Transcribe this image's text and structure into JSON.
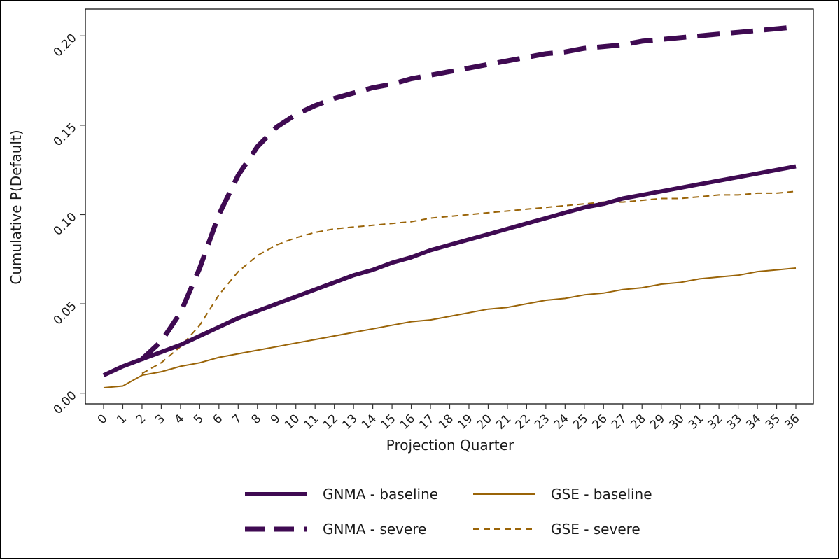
{
  "chart_data": {
    "type": "line",
    "title": "",
    "xlabel": "Projection Quarter",
    "ylabel": "Cumulative P(Default)",
    "xlim": [
      0,
      36
    ],
    "ylim": [
      0,
      0.2
    ],
    "x_ticks": [
      0,
      1,
      2,
      3,
      4,
      5,
      6,
      7,
      8,
      9,
      10,
      11,
      12,
      13,
      14,
      15,
      16,
      17,
      18,
      19,
      20,
      21,
      22,
      23,
      24,
      25,
      26,
      27,
      28,
      29,
      30,
      31,
      32,
      33,
      34,
      35,
      36
    ],
    "y_ticks": [
      0,
      0.05,
      0.1,
      0.15,
      0.2
    ],
    "y_tick_labels": [
      "0.00",
      "0.05",
      "0.10",
      "0.15",
      "0.20"
    ],
    "grid": false,
    "legend_position": "bottom",
    "x": [
      0,
      1,
      2,
      3,
      4,
      5,
      6,
      7,
      8,
      9,
      10,
      11,
      12,
      13,
      14,
      15,
      16,
      17,
      18,
      19,
      20,
      21,
      22,
      23,
      24,
      25,
      26,
      27,
      28,
      29,
      30,
      31,
      32,
      33,
      34,
      35,
      36
    ],
    "series": [
      {
        "name": "GNMA - baseline",
        "color": "#3f0a52",
        "style": "solid-thick",
        "values": [
          0.01,
          0.015,
          0.019,
          0.023,
          0.027,
          0.032,
          0.037,
          0.042,
          0.046,
          0.05,
          0.054,
          0.058,
          0.062,
          0.066,
          0.069,
          0.073,
          0.076,
          0.08,
          0.083,
          0.086,
          0.089,
          0.092,
          0.095,
          0.098,
          0.101,
          0.104,
          0.106,
          0.109,
          0.111,
          0.113,
          0.115,
          0.117,
          0.119,
          0.121,
          0.123,
          0.125,
          0.127
        ]
      },
      {
        "name": "GNMA - severe",
        "color": "#3f0a52",
        "style": "dashed-thick",
        "values": [
          null,
          null,
          0.019,
          0.029,
          0.045,
          0.07,
          0.1,
          0.122,
          0.138,
          0.149,
          0.156,
          0.161,
          0.165,
          0.168,
          0.171,
          0.173,
          0.176,
          0.178,
          0.18,
          0.182,
          0.184,
          0.186,
          0.188,
          0.19,
          0.191,
          0.193,
          0.194,
          0.195,
          0.197,
          0.198,
          0.199,
          0.2,
          0.201,
          0.202,
          0.203,
          0.204,
          0.205
        ]
      },
      {
        "name": "GSE - baseline",
        "color": "#9a6408",
        "style": "solid-thin",
        "values": [
          0.003,
          0.004,
          0.01,
          0.012,
          0.015,
          0.017,
          0.02,
          0.022,
          0.024,
          0.026,
          0.028,
          0.03,
          0.032,
          0.034,
          0.036,
          0.038,
          0.04,
          0.041,
          0.043,
          0.045,
          0.047,
          0.048,
          0.05,
          0.052,
          0.053,
          0.055,
          0.056,
          0.058,
          0.059,
          0.061,
          0.062,
          0.064,
          0.065,
          0.066,
          0.068,
          0.069,
          0.07
        ]
      },
      {
        "name": "GSE - severe",
        "color": "#9a6408",
        "style": "dashed-thin",
        "values": [
          null,
          null,
          0.011,
          0.017,
          0.026,
          0.038,
          0.055,
          0.068,
          0.077,
          0.083,
          0.087,
          0.09,
          0.092,
          0.093,
          0.094,
          0.095,
          0.096,
          0.098,
          0.099,
          0.1,
          0.101,
          0.102,
          0.103,
          0.104,
          0.105,
          0.106,
          0.107,
          0.107,
          0.108,
          0.109,
          0.109,
          0.11,
          0.111,
          0.111,
          0.112,
          0.112,
          0.113
        ]
      }
    ]
  }
}
